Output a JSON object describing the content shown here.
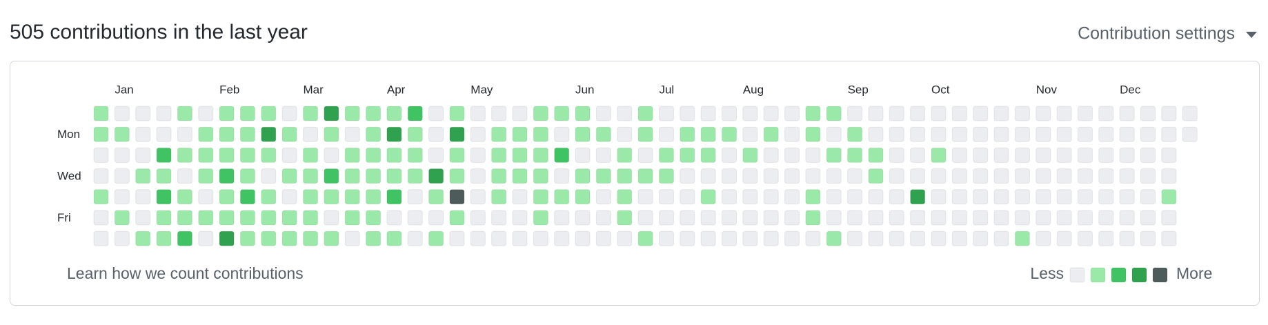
{
  "header": {
    "title": "505 contributions in the last year",
    "settings": "Contribution settings"
  },
  "chart_data": {
    "type": "heatmap",
    "categories": [
      null,
      "Jan",
      null,
      null,
      null,
      null,
      "Feb",
      null,
      null,
      null,
      "Mar",
      null,
      null,
      null,
      "Apr",
      null,
      null,
      null,
      "May",
      null,
      null,
      null,
      null,
      "Jun",
      null,
      null,
      null,
      "Jul",
      null,
      null,
      null,
      "Aug",
      null,
      null,
      null,
      null,
      "Sep",
      null,
      null,
      null,
      "Oct",
      null,
      null,
      null,
      null,
      "Nov",
      null,
      null,
      null,
      "Dec",
      null,
      null,
      null
    ],
    "y_categories": [
      null,
      "Mon",
      null,
      "Wed",
      null,
      "Fri",
      null
    ],
    "values": [
      [
        1,
        0,
        0,
        0,
        1,
        0,
        1,
        1,
        1,
        0,
        1,
        3,
        1,
        1,
        1,
        2,
        0,
        1,
        0,
        0,
        0,
        1,
        1,
        1,
        0,
        0,
        1,
        0,
        0,
        0,
        0,
        0,
        0,
        0,
        1,
        1,
        0,
        0,
        0,
        0,
        0,
        0,
        0,
        0,
        0,
        0,
        0,
        0,
        0,
        0,
        0,
        0,
        0
      ],
      [
        1,
        1,
        0,
        0,
        0,
        1,
        1,
        1,
        3,
        1,
        0,
        1,
        0,
        1,
        3,
        1,
        0,
        3,
        0,
        1,
        1,
        1,
        0,
        1,
        1,
        0,
        1,
        0,
        1,
        1,
        1,
        0,
        1,
        0,
        1,
        0,
        1,
        0,
        0,
        0,
        0,
        0,
        0,
        0,
        0,
        0,
        0,
        0,
        0,
        0,
        0,
        0,
        0
      ],
      [
        0,
        0,
        0,
        2,
        1,
        1,
        1,
        1,
        1,
        0,
        1,
        0,
        1,
        1,
        1,
        1,
        0,
        1,
        0,
        1,
        1,
        1,
        2,
        0,
        0,
        1,
        0,
        1,
        1,
        1,
        0,
        1,
        0,
        0,
        0,
        1,
        1,
        1,
        0,
        0,
        1,
        0,
        0,
        0,
        0,
        0,
        0,
        0,
        0,
        0,
        0,
        0,
        null
      ],
      [
        0,
        0,
        1,
        1,
        0,
        1,
        2,
        1,
        0,
        1,
        1,
        2,
        1,
        1,
        1,
        1,
        3,
        1,
        0,
        1,
        1,
        1,
        0,
        1,
        1,
        1,
        1,
        1,
        0,
        0,
        0,
        0,
        0,
        0,
        0,
        0,
        0,
        1,
        0,
        0,
        0,
        0,
        0,
        0,
        0,
        0,
        0,
        0,
        0,
        0,
        0,
        0,
        null
      ],
      [
        1,
        0,
        0,
        2,
        1,
        0,
        1,
        2,
        1,
        0,
        1,
        1,
        1,
        1,
        2,
        0,
        1,
        4,
        0,
        1,
        0,
        1,
        1,
        1,
        0,
        1,
        0,
        0,
        0,
        1,
        0,
        0,
        0,
        0,
        1,
        0,
        0,
        0,
        0,
        3,
        0,
        0,
        0,
        0,
        0,
        0,
        0,
        0,
        0,
        0,
        0,
        1,
        null
      ],
      [
        0,
        1,
        0,
        1,
        1,
        1,
        1,
        1,
        1,
        1,
        1,
        0,
        1,
        1,
        0,
        0,
        0,
        1,
        0,
        0,
        0,
        1,
        0,
        0,
        0,
        1,
        0,
        0,
        0,
        0,
        0,
        0,
        0,
        0,
        1,
        0,
        0,
        0,
        0,
        0,
        0,
        0,
        0,
        0,
        0,
        0,
        0,
        0,
        0,
        0,
        0,
        0,
        null
      ],
      [
        0,
        0,
        1,
        1,
        2,
        0,
        3,
        1,
        1,
        1,
        1,
        1,
        0,
        1,
        1,
        0,
        1,
        0,
        0,
        0,
        0,
        0,
        0,
        0,
        0,
        0,
        1,
        0,
        0,
        0,
        0,
        0,
        0,
        0,
        0,
        1,
        0,
        0,
        0,
        0,
        0,
        0,
        0,
        0,
        1,
        0,
        0,
        0,
        0,
        0,
        0,
        0,
        null
      ]
    ],
    "colors": [
      "#ebedf0",
      "#9be9a8",
      "#40c463",
      "#30a14e",
      "#4d5b5a"
    ]
  },
  "footer": {
    "link": "Learn how we count contributions",
    "legend_less": "Less",
    "legend_more": "More"
  }
}
